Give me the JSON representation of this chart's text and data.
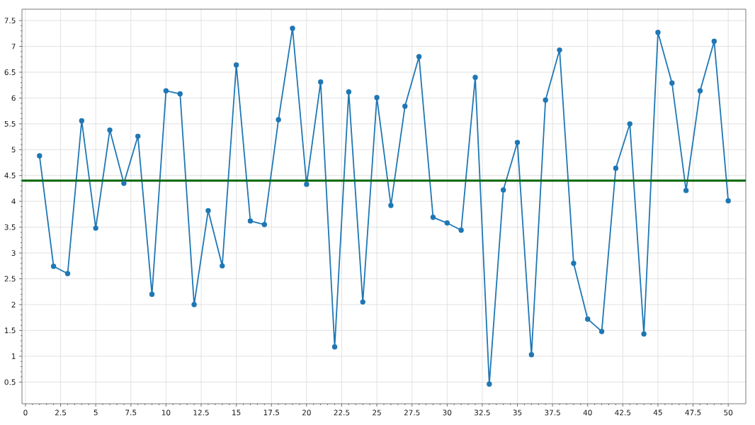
{
  "chart_data": {
    "type": "line",
    "x": [
      1,
      2,
      3,
      4,
      5,
      6,
      7,
      8,
      9,
      10,
      11,
      12,
      13,
      14,
      15,
      16,
      17,
      18,
      19,
      20,
      21,
      22,
      23,
      24,
      25,
      26,
      27,
      28,
      29,
      30,
      31,
      32,
      33,
      34,
      35,
      36,
      37,
      38,
      39,
      40,
      41,
      42,
      43,
      44,
      45,
      46,
      47,
      48,
      49,
      50
    ],
    "series": [
      {
        "color": "#1f77b4",
        "values": [
          4.88,
          2.74,
          2.6,
          5.56,
          3.48,
          5.38,
          4.35,
          5.26,
          2.2,
          6.14,
          6.08,
          2.0,
          3.82,
          2.75,
          6.64,
          3.62,
          3.55,
          5.58,
          7.35,
          4.33,
          6.31,
          1.18,
          6.12,
          2.05,
          6.01,
          3.92,
          5.84,
          6.8,
          3.69,
          3.58,
          3.44,
          6.4,
          0.46,
          4.22,
          5.14,
          1.03,
          5.96,
          6.93,
          2.8,
          1.72,
          1.48,
          4.64,
          5.5,
          1.43,
          7.27,
          6.29,
          4.21,
          6.14,
          7.1,
          4.01
        ]
      }
    ],
    "xlim": [
      -0.25,
      51.25
    ],
    "ylim": [
      0.08,
      7.72
    ],
    "xticks": [
      0,
      2.5,
      5,
      7.5,
      10,
      12.5,
      15,
      17.5,
      20,
      22.5,
      25,
      27.5,
      30,
      32.5,
      35,
      37.5,
      40,
      42.5,
      45,
      47.5,
      50
    ],
    "yticks": [
      0.5,
      1,
      1.5,
      2,
      2.5,
      3,
      3.5,
      4,
      4.5,
      5,
      5.5,
      6,
      6.5,
      7,
      7.5
    ],
    "grid": true,
    "marker": "circle",
    "line_style": "solid",
    "ref_lines": [
      {
        "axis": "y",
        "value": 4.4,
        "color": "#006400"
      }
    ]
  }
}
